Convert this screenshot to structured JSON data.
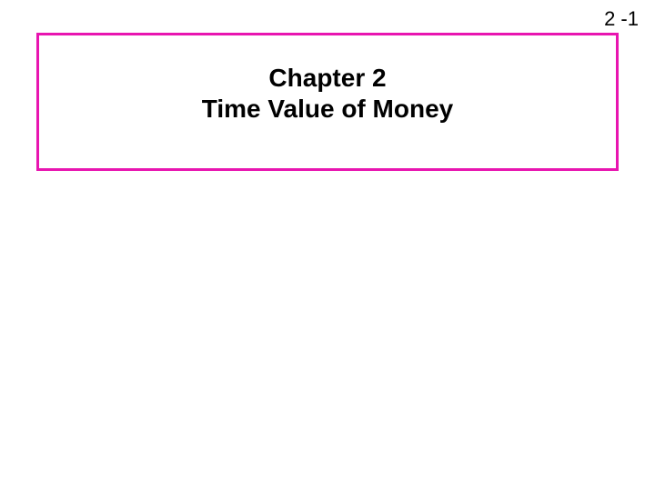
{
  "page_number": "2 -1",
  "title_box": {
    "line1": "Chapter 2",
    "line2": "Time Value of Money",
    "border_color": "#e815b0",
    "background_color": "#ffffff",
    "text_color": "#000000",
    "font_size": 28,
    "font_weight": "bold"
  },
  "page_background": "#ffffff",
  "page_number_fontsize": 22,
  "page_number_color": "#000000"
}
